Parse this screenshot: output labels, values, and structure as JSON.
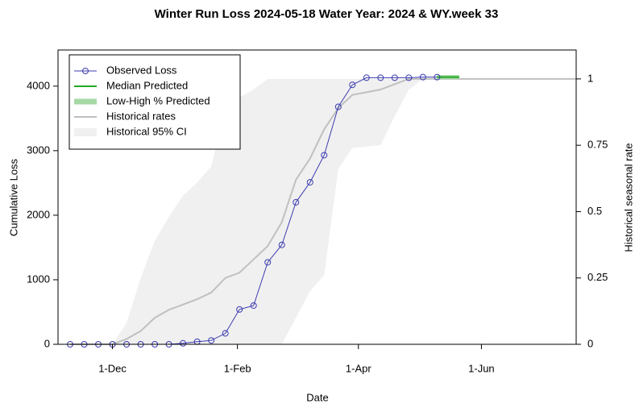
{
  "chart_data": {
    "type": "line",
    "title": "Winter Run Loss 2024-05-18  Water Year: 2024 & WY.week 33",
    "x_label": "Date",
    "y_label": "Cumulative Loss",
    "y2_label": "Historical seasonal rate",
    "xlim": [
      "2023-11-04",
      "2024-07-18"
    ],
    "xticks": [
      {
        "value": "2023-12-01",
        "label": "1-Dec"
      },
      {
        "value": "2024-02-01",
        "label": "1-Feb"
      },
      {
        "value": "2024-04-01",
        "label": "1-Apr"
      },
      {
        "value": "2024-06-01",
        "label": "1-Jun"
      }
    ],
    "ylim": [
      0,
      4560
    ],
    "yticks": [
      0,
      1000,
      2000,
      3000,
      4000
    ],
    "y2lim": [
      0,
      1.109
    ],
    "y2ticks": [
      0,
      0.25,
      0.5,
      0.75,
      1
    ],
    "legend": "top-left",
    "series": [
      {
        "name": "Historical 95% CI",
        "color": "#f0f0f0",
        "axis": "y2",
        "kind": "band",
        "x": [
          "2023-11-10",
          "2023-11-17",
          "2023-11-24",
          "2023-12-01",
          "2023-12-08",
          "2023-12-15",
          "2023-12-22",
          "2023-12-29",
          "2024-01-05",
          "2024-01-12",
          "2024-01-19",
          "2024-01-26",
          "2024-02-02",
          "2024-02-09",
          "2024-02-16",
          "2024-02-23",
          "2024-03-01",
          "2024-03-08",
          "2024-03-15",
          "2024-03-22",
          "2024-03-29",
          "2024-04-05",
          "2024-04-12",
          "2024-04-19",
          "2024-04-26",
          "2024-05-03",
          "2024-05-10"
        ],
        "low": [
          0,
          0,
          0,
          0,
          0,
          0,
          0,
          0,
          0,
          0,
          0,
          0,
          0,
          0,
          0,
          0,
          0.1,
          0.2,
          0.26,
          0.66,
          0.74,
          0.745,
          0.75,
          0.86,
          0.96,
          1,
          1
        ],
        "high": [
          0,
          0,
          0,
          0,
          0.08,
          0.25,
          0.39,
          0.48,
          0.56,
          0.61,
          0.67,
          0.9,
          0.93,
          0.96,
          1,
          1,
          1,
          1,
          1,
          1,
          1,
          1,
          1,
          1,
          1,
          1,
          1
        ]
      },
      {
        "name": "Historical rates",
        "color": "#c0c0c0",
        "axis": "y2",
        "kind": "line",
        "x": [
          "2023-11-10",
          "2023-11-17",
          "2023-11-24",
          "2023-12-01",
          "2023-12-08",
          "2023-12-15",
          "2023-12-22",
          "2023-12-29",
          "2024-01-05",
          "2024-01-12",
          "2024-01-19",
          "2024-01-26",
          "2024-02-02",
          "2024-02-09",
          "2024-02-16",
          "2024-02-23",
          "2024-03-01",
          "2024-03-08",
          "2024-03-15",
          "2024-03-22",
          "2024-03-29",
          "2024-04-05",
          "2024-04-12",
          "2024-04-19",
          "2024-04-26",
          "2024-05-03",
          "2024-05-10",
          "2024-07-18"
        ],
        "values": [
          0,
          0,
          0,
          0,
          0.02,
          0.05,
          0.1,
          0.13,
          0.15,
          0.17,
          0.195,
          0.25,
          0.27,
          0.32,
          0.37,
          0.46,
          0.62,
          0.7,
          0.81,
          0.89,
          0.94,
          0.95,
          0.96,
          0.98,
          1,
          1,
          1,
          1
        ]
      },
      {
        "name": "Low-High % Predicted",
        "color": "#a6d8a6",
        "kind": "band",
        "x": [
          "2024-05-10",
          "2024-05-21"
        ],
        "low": [
          4140,
          4140
        ],
        "high": [
          4140,
          4140
        ]
      },
      {
        "name": "Median Predicted",
        "color": "#22aa22",
        "kind": "line",
        "x": [
          "2024-05-10",
          "2024-05-21"
        ],
        "values": [
          4140,
          4140
        ]
      },
      {
        "name": "Observed Loss",
        "color": "#3b3bb0",
        "kind": "points-line",
        "x": [
          "2023-11-10",
          "2023-11-17",
          "2023-11-24",
          "2023-12-01",
          "2023-12-08",
          "2023-12-15",
          "2023-12-22",
          "2023-12-29",
          "2024-01-05",
          "2024-01-12",
          "2024-01-19",
          "2024-01-26",
          "2024-02-02",
          "2024-02-09",
          "2024-02-16",
          "2024-02-23",
          "2024-03-01",
          "2024-03-08",
          "2024-03-15",
          "2024-03-22",
          "2024-03-29",
          "2024-04-05",
          "2024-04-12",
          "2024-04-19",
          "2024-04-26",
          "2024-05-03",
          "2024-05-10"
        ],
        "values": [
          0,
          0,
          0,
          0,
          0,
          0,
          0,
          0,
          15,
          40,
          60,
          170,
          540,
          600,
          1270,
          1540,
          2200,
          2510,
          2930,
          3680,
          4020,
          4130,
          4130,
          4130,
          4130,
          4140,
          4140
        ]
      }
    ]
  }
}
